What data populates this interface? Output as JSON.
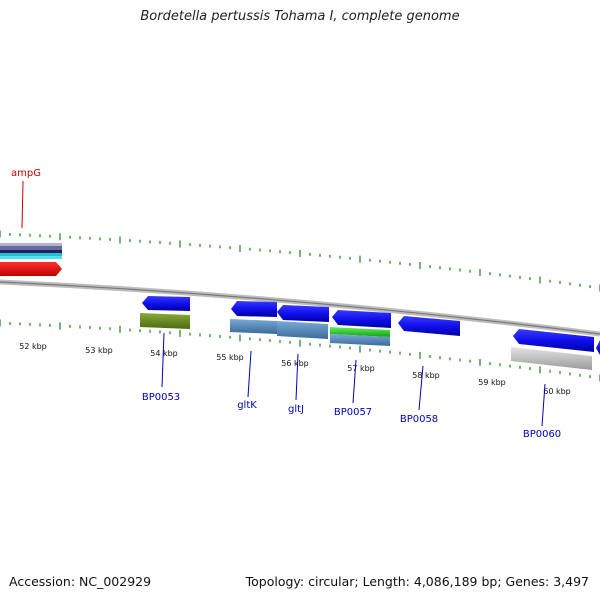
{
  "title": "Bordetella pertussis Tohama I, complete genome",
  "footer": {
    "accession": "Accession: NC_002929",
    "summary": "Topology: circular; Length: 4,086,189 bp; Genes: 3,497"
  },
  "colors": {
    "label_red": "#cc0000",
    "label_blue": "#0000bb",
    "tick_green": "#2d8a2d",
    "backbone": "#8a8a8a"
  },
  "ruler_labels": [
    "52 kbp",
    "53 kbp",
    "54 kbp",
    "55 kbp",
    "56 kbp",
    "57 kbp",
    "58 kbp",
    "59 kbp",
    "60 kbp"
  ],
  "features": [
    {
      "name": "ampG",
      "color": "red"
    },
    {
      "name": "BP0053",
      "color": "blue"
    },
    {
      "name": "gltK",
      "color": "blue"
    },
    {
      "name": "gltJ",
      "color": "blue"
    },
    {
      "name": "BP0057",
      "color": "blue"
    },
    {
      "name": "BP0058",
      "color": "blue"
    },
    {
      "name": "BP0060",
      "color": "blue"
    }
  ]
}
